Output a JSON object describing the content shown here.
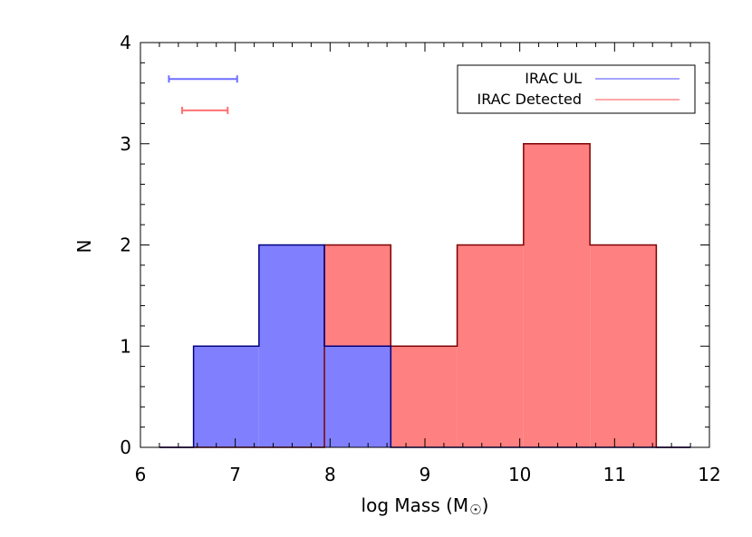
{
  "chart_data": {
    "type": "histogram",
    "xlabel": "log Mass (M",
    "xlabel_suffix": ")",
    "ylabel": "N",
    "xlim": [
      6,
      12
    ],
    "ylim": [
      0,
      4
    ],
    "xticks": [
      "6",
      "7",
      "8",
      "9",
      "10",
      "11",
      "12"
    ],
    "yticks": [
      "0",
      "1",
      "2",
      "3",
      "4"
    ],
    "bin_edges": [
      6.2,
      6.56,
      7.25,
      7.94,
      8.64,
      9.34,
      10.04,
      10.74,
      11.44,
      11.8
    ],
    "series": [
      {
        "name": "IRAC UL",
        "color": "#8080ff",
        "edge_color": "#000080",
        "line_color": "#6f6fff",
        "counts": [
          0,
          1,
          2,
          1,
          0,
          0,
          0,
          0,
          0
        ]
      },
      {
        "name": "IRAC Detected",
        "color": "#ff8080",
        "edge_color": "#800000",
        "line_color": "#ff7070",
        "counts": [
          0,
          0,
          0,
          2,
          1,
          2,
          3,
          2,
          0
        ]
      }
    ],
    "error_bars": [
      {
        "series": "IRAC UL",
        "y": 3.64,
        "xmin": 6.3,
        "xmax": 7.02,
        "color": "#6f6fff"
      },
      {
        "series": "IRAC Detected",
        "y": 3.33,
        "xmin": 6.44,
        "xmax": 6.92,
        "color": "#ff7070"
      }
    ],
    "legend_position": "top-right"
  }
}
